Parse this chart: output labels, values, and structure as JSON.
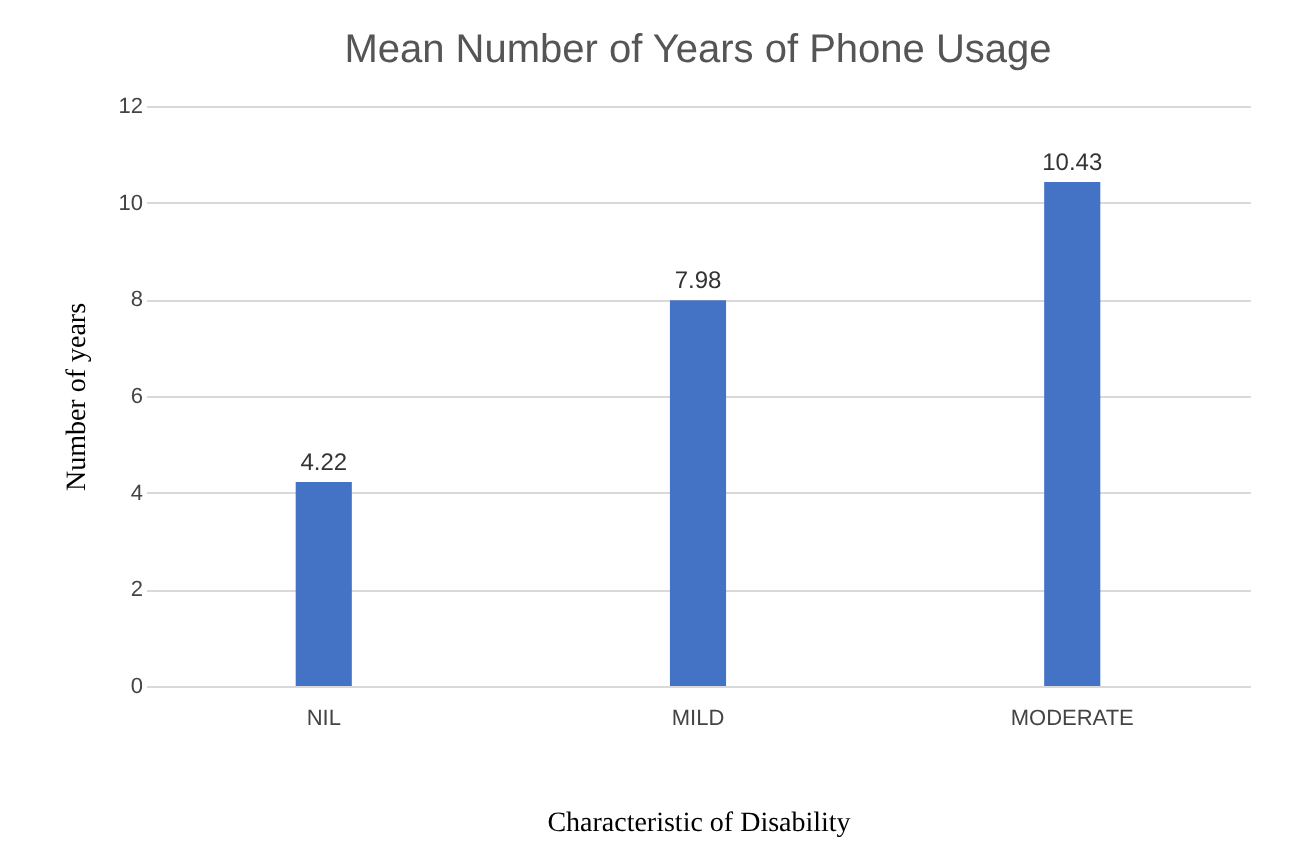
{
  "chart_data": {
    "type": "bar",
    "title": "Mean Number of Years of Phone Usage",
    "xlabel": "Characteristic of Disability",
    "ylabel": "Number of years",
    "categories": [
      "NIL",
      "MILD",
      "MODERATE"
    ],
    "values": [
      4.22,
      7.98,
      10.43
    ],
    "color": "#4472c4",
    "ylim": [
      0,
      12
    ],
    "yticks": [
      0,
      2,
      4,
      6,
      8,
      10,
      12
    ],
    "grid": "y",
    "data_labels": true
  }
}
